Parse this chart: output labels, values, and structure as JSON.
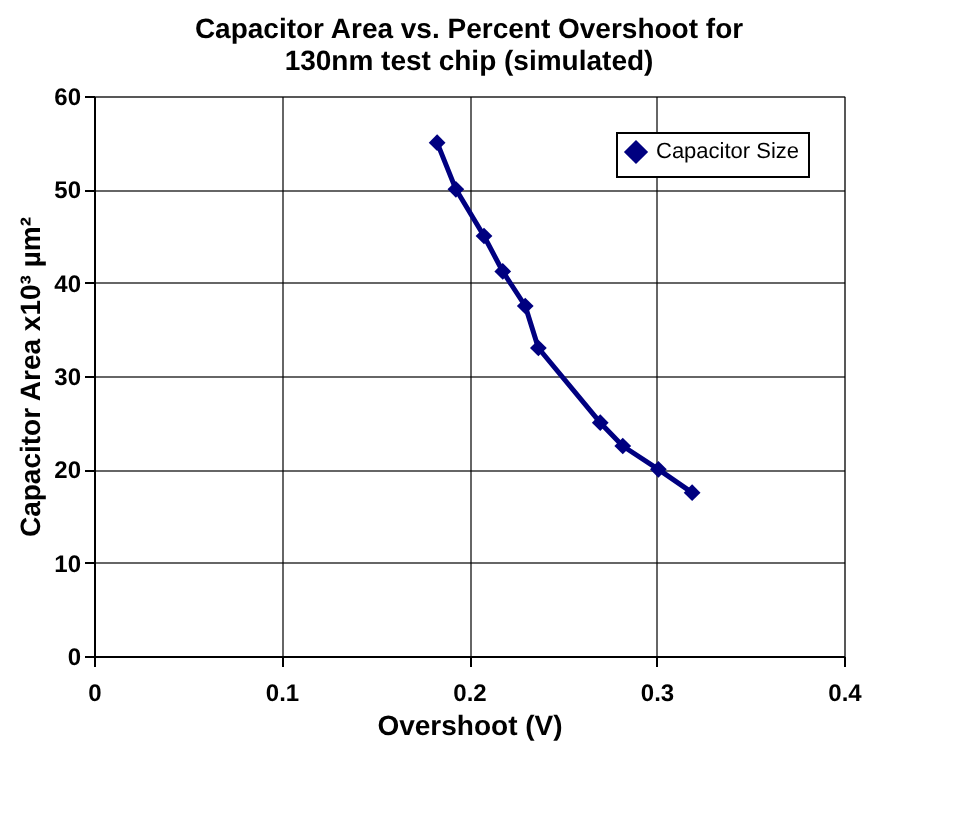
{
  "chart_data": {
    "type": "line",
    "title": "Capacitor Area vs. Percent Overshoot for 130nm test chip (simulated)",
    "xlabel": "Overshoot (V)",
    "ylabel": "Capacitor Area x10³ µm²",
    "x": [
      0.183,
      0.193,
      0.208,
      0.218,
      0.23,
      0.237,
      0.27,
      0.282,
      0.301,
      0.319
    ],
    "series": [
      {
        "name": "Capacitor Size",
        "color": "#000080",
        "values": [
          55,
          50,
          45,
          41.2,
          37.5,
          33,
          25,
          22.5,
          20,
          17.5
        ]
      }
    ],
    "xlim": [
      0,
      0.4
    ],
    "xticks": [
      0,
      0.1,
      0.2,
      0.3,
      0.4
    ],
    "ylim": [
      0,
      60
    ],
    "yticks": [
      0,
      10,
      20,
      30,
      40,
      50,
      60
    ],
    "grid": true,
    "legend": "top right",
    "marker": "diamond",
    "line_style": "solid"
  }
}
